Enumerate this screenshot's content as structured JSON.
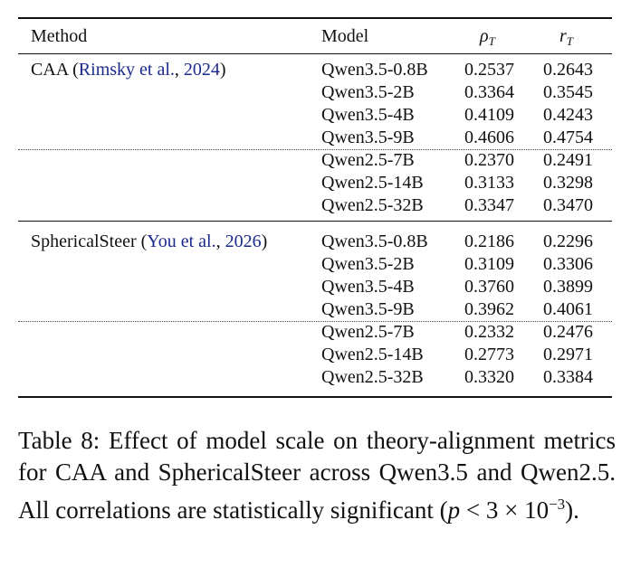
{
  "table": {
    "headers": {
      "method": "Method",
      "model": "Model",
      "rho_symbol": "ρ",
      "rho_sub": "T",
      "r_symbol": "r",
      "r_sub": "T"
    },
    "groups": [
      {
        "method_name": "CAA",
        "cite_open": " (",
        "cite_author": "Rimsky et al.",
        "cite_sep": ", ",
        "cite_year": "2024",
        "cite_close": ")",
        "rows": [
          {
            "model": "Qwen3.5-0.8B",
            "rho": "0.2537",
            "r": "0.2643"
          },
          {
            "model": "Qwen3.5-2B",
            "rho": "0.3364",
            "r": "0.3545"
          },
          {
            "model": "Qwen3.5-4B",
            "rho": "0.4109",
            "r": "0.4243"
          },
          {
            "model": "Qwen3.5-9B",
            "rho": "0.4606",
            "r": "0.4754"
          },
          {
            "model": "Qwen2.5-7B",
            "rho": "0.2370",
            "r": "0.2491"
          },
          {
            "model": "Qwen2.5-14B",
            "rho": "0.3133",
            "r": "0.3298"
          },
          {
            "model": "Qwen2.5-32B",
            "rho": "0.3347",
            "r": "0.3470"
          }
        ]
      },
      {
        "method_name": "SphericalSteer",
        "cite_open": " (",
        "cite_author": "You et al.",
        "cite_sep": ", ",
        "cite_year": "2026",
        "cite_close": ")",
        "rows": [
          {
            "model": "Qwen3.5-0.8B",
            "rho": "0.2186",
            "r": "0.2296"
          },
          {
            "model": "Qwen3.5-2B",
            "rho": "0.3109",
            "r": "0.3306"
          },
          {
            "model": "Qwen3.5-4B",
            "rho": "0.3760",
            "r": "0.3899"
          },
          {
            "model": "Qwen3.5-9B",
            "rho": "0.3962",
            "r": "0.4061"
          },
          {
            "model": "Qwen2.5-7B",
            "rho": "0.2332",
            "r": "0.2476"
          },
          {
            "model": "Qwen2.5-14B",
            "rho": "0.2773",
            "r": "0.2971"
          },
          {
            "model": "Qwen2.5-32B",
            "rho": "0.3320",
            "r": "0.3384"
          }
        ]
      }
    ]
  },
  "caption": {
    "label": "Table 8:",
    "text": " Effect of model scale on theory-alignment metrics for CAA and SphericalSteer across Qwen3.5 and Qwen2.5. All correlations are statistically significant (",
    "math_p": "p",
    "math_rel": " < 3 × 10",
    "math_exp": "−3",
    "end": ")."
  }
}
